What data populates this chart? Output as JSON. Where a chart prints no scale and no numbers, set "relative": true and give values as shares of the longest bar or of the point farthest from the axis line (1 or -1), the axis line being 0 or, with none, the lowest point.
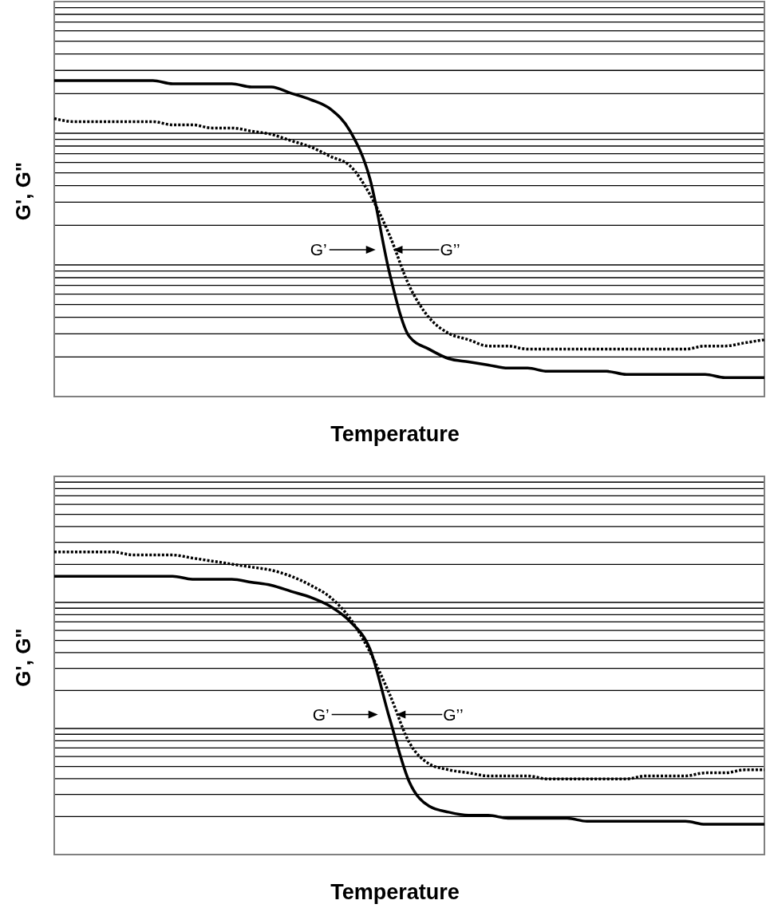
{
  "chart_data": [
    {
      "type": "line",
      "relative": true,
      "xlabel": "Temperature",
      "ylabel": "G', G\"",
      "grid": "y",
      "legend": false,
      "marker": "none",
      "annotations": [
        "G’",
        "G’’"
      ],
      "categories": [
        null,
        null,
        null,
        null,
        null,
        null,
        null,
        null,
        null,
        null,
        null,
        null,
        null,
        null,
        null,
        null,
        null,
        null,
        null,
        null,
        null,
        null,
        null,
        null,
        null,
        null,
        null,
        null,
        null,
        null,
        null,
        null,
        null,
        null,
        null,
        null,
        null
      ],
      "series": [
        {
          "color": "#000000",
          "line_style": "solid",
          "values": [
            1,
            1,
            1,
            1,
            1,
            1,
            0.99,
            0.99,
            0.99,
            0.99,
            0.98,
            0.98,
            0.96,
            0.94,
            0.91,
            0.84,
            0.69,
            0.39,
            0.19,
            0.15,
            0.12,
            0.11,
            0.1,
            0.09,
            0.09,
            0.08,
            0.08,
            0.08,
            0.08,
            0.07,
            0.07,
            0.07,
            0.07,
            0.07,
            0.06,
            0.06,
            0.06
          ]
        },
        {
          "color": "#000000",
          "line_style": "dotted",
          "values": [
            0.88,
            0.87,
            0.87,
            0.87,
            0.87,
            0.87,
            0.86,
            0.86,
            0.85,
            0.85,
            0.84,
            0.83,
            0.81,
            0.79,
            0.76,
            0.73,
            0.64,
            0.51,
            0.35,
            0.25,
            0.2,
            0.18,
            0.16,
            0.16,
            0.15,
            0.15,
            0.15,
            0.15,
            0.15,
            0.15,
            0.15,
            0.15,
            0.15,
            0.16,
            0.16,
            0.17,
            0.18
          ]
        }
      ]
    },
    {
      "type": "line",
      "relative": true,
      "xlabel": "Temperature",
      "ylabel": "G', G\"",
      "grid": "y",
      "legend": false,
      "marker": "none",
      "annotations": [
        "G’",
        "G’’"
      ],
      "categories": [
        null,
        null,
        null,
        null,
        null,
        null,
        null,
        null,
        null,
        null,
        null,
        null,
        null,
        null,
        null,
        null,
        null,
        null,
        null,
        null,
        null,
        null,
        null,
        null,
        null,
        null,
        null,
        null,
        null,
        null,
        null,
        null,
        null,
        null,
        null,
        null,
        null
      ],
      "series": [
        {
          "color": "#000000",
          "line_style": "solid",
          "values": [
            0.92,
            0.92,
            0.92,
            0.92,
            0.92,
            0.92,
            0.92,
            0.91,
            0.91,
            0.91,
            0.9,
            0.89,
            0.87,
            0.85,
            0.82,
            0.77,
            0.68,
            0.45,
            0.24,
            0.16,
            0.14,
            0.13,
            0.13,
            0.12,
            0.12,
            0.12,
            0.12,
            0.11,
            0.11,
            0.11,
            0.11,
            0.11,
            0.11,
            0.1,
            0.1,
            0.1,
            0.1
          ]
        },
        {
          "color": "#000000",
          "line_style": "dotted",
          "values": [
            1,
            1,
            1,
            1,
            0.99,
            0.99,
            0.99,
            0.98,
            0.97,
            0.96,
            0.95,
            0.94,
            0.92,
            0.89,
            0.85,
            0.78,
            0.67,
            0.53,
            0.37,
            0.3,
            0.28,
            0.27,
            0.26,
            0.26,
            0.26,
            0.25,
            0.25,
            0.25,
            0.25,
            0.25,
            0.26,
            0.26,
            0.26,
            0.27,
            0.27,
            0.28,
            0.28
          ]
        }
      ]
    }
  ]
}
